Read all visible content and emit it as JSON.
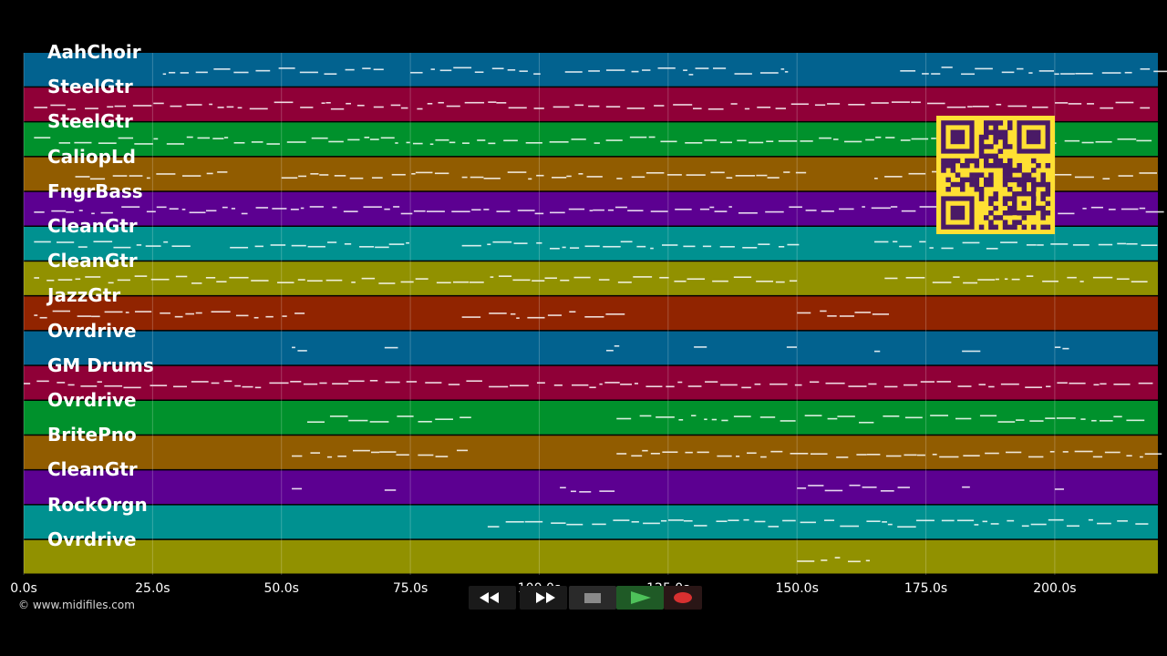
{
  "tracks": [
    {
      "name": "AahChoir",
      "color": "#02628f"
    },
    {
      "name": "SteelGtr",
      "color": "#8f0037"
    },
    {
      "name": "SteelGtr",
      "color": "#00912c"
    },
    {
      "name": "CaliopLd",
      "color": "#915c00"
    },
    {
      "name": "FngrBass",
      "color": "#5c0091"
    },
    {
      "name": "CleanGtr",
      "color": "#009190"
    },
    {
      "name": "CleanGtr",
      "color": "#919100"
    },
    {
      "name": "JazzGtr",
      "color": "#912400"
    },
    {
      "name": "Ovrdrive",
      "color": "#02628f"
    },
    {
      "name": "GM Drums",
      "color": "#8f0037"
    },
    {
      "name": "Ovrdrive",
      "color": "#00912c"
    },
    {
      "name": "BritePno",
      "color": "#915c00"
    },
    {
      "name": "CleanGtr",
      "color": "#5c0091"
    },
    {
      "name": "RockOrgn",
      "color": "#009190"
    },
    {
      "name": "Ovrdrive",
      "color": "#919100"
    }
  ],
  "time_axis": {
    "ticks": [
      "0.0s",
      "25.0s",
      "50.0s",
      "75.0s",
      "100.0s",
      "125.0s",
      "150.0s",
      "175.0s",
      "200.0s"
    ],
    "tick_values": [
      0,
      25,
      50,
      75,
      100,
      125,
      150,
      175,
      200
    ],
    "max_seconds": 220
  },
  "copyright": "© www.midifiles.com",
  "transport": {
    "rewind_icon": "rewind-icon",
    "fast_forward_icon": "fast-forward-icon",
    "stop_icon": "stop-icon",
    "play_icon": "play-icon",
    "record_icon": "record-icon",
    "colors": {
      "play": "#2f8f3a",
      "record": "#d83030",
      "stop": "#8a8a8a"
    }
  },
  "qr_code": {
    "icon": "qr-code-icon",
    "color": "#ffe033",
    "dark": "#4a1a66"
  }
}
